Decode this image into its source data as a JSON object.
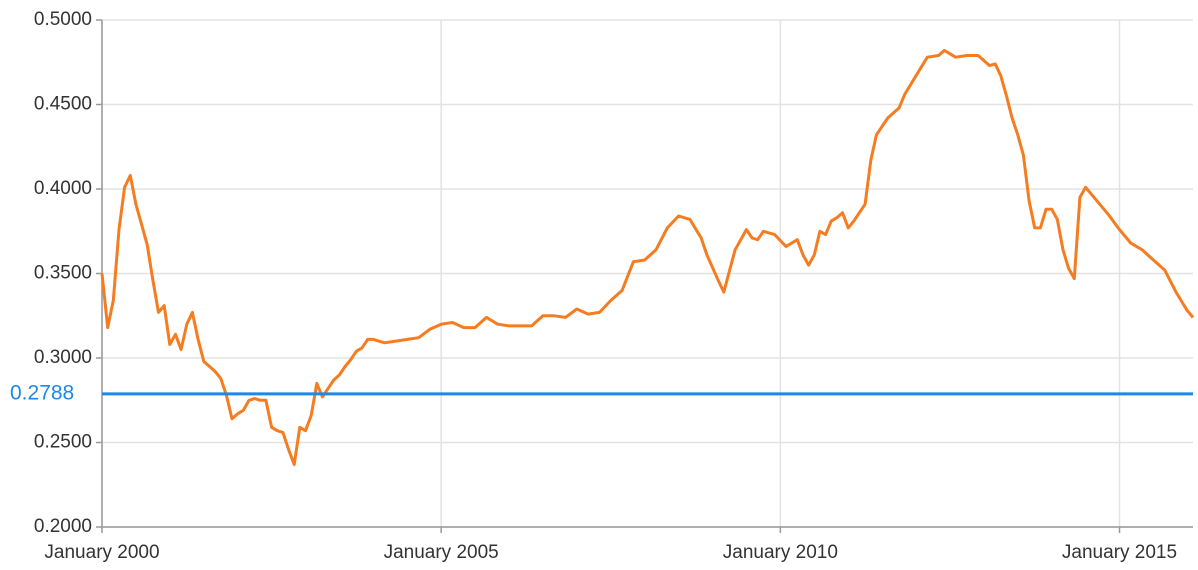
{
  "chart_data": {
    "type": "line",
    "x": [
      "2000-01",
      "2000-02",
      "2000-03",
      "2000-04",
      "2000-05",
      "2000-06",
      "2000-07",
      "2000-08",
      "2000-09",
      "2000-10",
      "2000-11",
      "2000-12",
      "2001-01",
      "2001-02",
      "2001-03",
      "2001-04",
      "2001-05",
      "2001-06",
      "2001-07",
      "2001-09",
      "2001-10",
      "2001-11",
      "2001-12",
      "2002-01",
      "2002-02",
      "2002-03",
      "2002-04",
      "2002-05",
      "2002-06",
      "2002-07",
      "2002-08",
      "2002-09",
      "2002-10",
      "2002-11",
      "2002-12",
      "2003-01",
      "2003-02",
      "2003-03",
      "2003-04",
      "2003-05",
      "2003-06",
      "2003-07",
      "2003-08",
      "2003-09",
      "2003-10",
      "2003-11",
      "2003-12",
      "2004-01",
      "2004-03",
      "2004-05",
      "2004-07",
      "2004-09",
      "2004-11",
      "2005-01",
      "2005-03",
      "2005-05",
      "2005-07",
      "2005-09",
      "2005-11",
      "2006-01",
      "2006-03",
      "2006-05",
      "2006-07",
      "2006-09",
      "2006-11",
      "2007-01",
      "2007-03",
      "2007-05",
      "2007-07",
      "2007-09",
      "2007-11",
      "2008-01",
      "2008-03",
      "2008-05",
      "2008-07",
      "2008-09",
      "2008-11",
      "2008-12",
      "2009-02",
      "2009-03",
      "2009-05",
      "2009-07",
      "2009-08",
      "2009-09",
      "2009-10",
      "2009-12",
      "2010-02",
      "2010-04",
      "2010-05",
      "2010-06",
      "2010-07",
      "2010-08",
      "2010-09",
      "2010-10",
      "2010-11",
      "2010-12",
      "2011-01",
      "2011-02",
      "2011-04",
      "2011-05",
      "2011-06",
      "2011-08",
      "2011-10",
      "2011-11",
      "2012-01",
      "2012-03",
      "2012-05",
      "2012-06",
      "2012-08",
      "2012-10",
      "2012-12",
      "2013-02",
      "2013-03",
      "2013-04",
      "2013-05",
      "2013-06",
      "2013-07",
      "2013-08",
      "2013-09",
      "2013-10",
      "2013-11",
      "2013-12",
      "2014-01",
      "2014-02",
      "2014-03",
      "2014-04",
      "2014-05",
      "2014-06",
      "2014-07",
      "2014-09",
      "2014-11",
      "2015-01",
      "2015-03",
      "2015-05",
      "2015-07",
      "2015-09",
      "2015-11",
      "2016-01",
      "2016-02"
    ],
    "series": [
      {
        "color": "#f57c20",
        "values": [
          0.35,
          0.318,
          0.334,
          0.376,
          0.401,
          0.408,
          0.391,
          0.379,
          0.367,
          0.346,
          0.327,
          0.331,
          0.308,
          0.314,
          0.305,
          0.32,
          0.327,
          0.311,
          0.298,
          0.292,
          0.288,
          0.278,
          0.264,
          0.267,
          0.269,
          0.275,
          0.276,
          0.275,
          0.275,
          0.259,
          0.257,
          0.256,
          0.246,
          0.237,
          0.259,
          0.257,
          0.266,
          0.285,
          0.277,
          0.282,
          0.287,
          0.29,
          0.295,
          0.299,
          0.304,
          0.306,
          0.311,
          0.311,
          0.309,
          0.31,
          0.311,
          0.312,
          0.317,
          0.32,
          0.321,
          0.318,
          0.318,
          0.324,
          0.32,
          0.319,
          0.319,
          0.319,
          0.325,
          0.325,
          0.324,
          0.329,
          0.326,
          0.327,
          0.334,
          0.34,
          0.357,
          0.358,
          0.364,
          0.377,
          0.384,
          0.382,
          0.371,
          0.361,
          0.346,
          0.339,
          0.364,
          0.376,
          0.371,
          0.37,
          0.375,
          0.373,
          0.366,
          0.37,
          0.361,
          0.355,
          0.361,
          0.375,
          0.373,
          0.381,
          0.383,
          0.386,
          0.377,
          0.381,
          0.391,
          0.417,
          0.432,
          0.442,
          0.448,
          0.456,
          0.467,
          0.478,
          0.479,
          0.482,
          0.478,
          0.479,
          0.479,
          0.473,
          0.474,
          0.467,
          0.455,
          0.442,
          0.432,
          0.42,
          0.393,
          0.377,
          0.377,
          0.388,
          0.388,
          0.382,
          0.364,
          0.353,
          0.347,
          0.395,
          0.401,
          0.393,
          0.385,
          0.376,
          0.368,
          0.364,
          0.358,
          0.352,
          0.339,
          0.328,
          0.324
        ]
      }
    ],
    "reference_line": {
      "value": 0.2788,
      "color": "#1e88e5"
    },
    "xlim": [
      "2000-01",
      "2016-02"
    ],
    "xticks": [
      {
        "value": "2000-01",
        "label": "January 2000"
      },
      {
        "value": "2005-01",
        "label": "January 2005"
      },
      {
        "value": "2010-01",
        "label": "January 2010"
      },
      {
        "value": "2015-01",
        "label": "January 2015"
      }
    ],
    "ylim": [
      0.2,
      0.5
    ],
    "yticks": [
      {
        "value": 0.2,
        "label": "0.2000"
      },
      {
        "value": 0.25,
        "label": "0.2500"
      },
      {
        "value": 0.3,
        "label": "0.3000"
      },
      {
        "value": 0.35,
        "label": "0.3500"
      },
      {
        "value": 0.4,
        "label": "0.4000"
      },
      {
        "value": 0.45,
        "label": "0.4500"
      },
      {
        "value": 0.5,
        "label": "0.5000"
      }
    ],
    "grid": true
  }
}
